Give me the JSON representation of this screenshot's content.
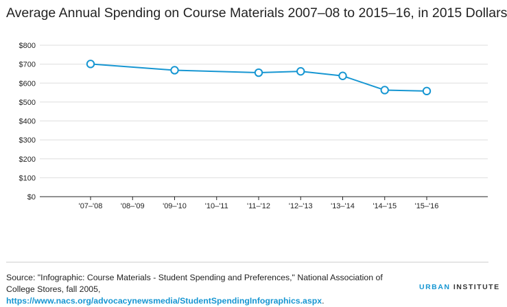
{
  "title": "Average Annual Spending on Course Materials 2007–08 to 2015–16, in 2015 Dollars",
  "source": {
    "text": "Source: \"Infographic: Course Materials - Student Spending and Preferences,\" National Association of College Stores, fall 2005, ",
    "link": "https://www.nacs.org/advocacynewsmedia/StudentSpendingInfographics.aspx",
    "end": "."
  },
  "logo": {
    "urban": "URBAN",
    "institute": "INSTITUTE"
  },
  "colors": {
    "line": "#1696d2",
    "grid": "#dedede",
    "axis": "#222222"
  },
  "chart_data": {
    "type": "line",
    "title": "Average Annual Spending on Course Materials 2007–08 to 2015–16, in 2015 Dollars",
    "xlabel": "",
    "ylabel": "",
    "categories": [
      "'07–'08",
      "'08–'09",
      "'09–'10",
      "'10–'11",
      "'11–'12",
      "'12–'13",
      "'13–'14",
      "'14–'15",
      "'15–'16"
    ],
    "yticks": [
      "$0",
      "$100",
      "$200",
      "$300",
      "$400",
      "$500",
      "$600",
      "$700",
      "$800"
    ],
    "ylim": [
      0,
      800
    ],
    "grid": "horizontal",
    "series": [
      {
        "points": [
          {
            "x": "'07–'08",
            "y": 701
          },
          {
            "x": "'09–'10",
            "y": 668
          },
          {
            "x": "'11–'12",
            "y": 655
          },
          {
            "x": "'12–'13",
            "y": 662
          },
          {
            "x": "'13–'14",
            "y": 638
          },
          {
            "x": "'14–'15",
            "y": 563
          },
          {
            "x": "'15–'16",
            "y": 558
          }
        ]
      }
    ]
  }
}
